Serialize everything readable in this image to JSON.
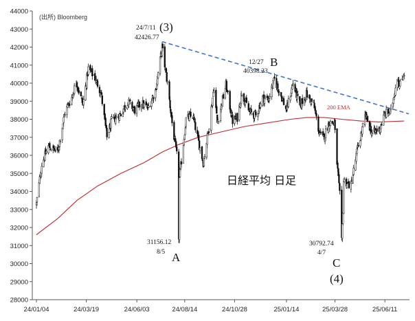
{
  "chart_data": {
    "type": "candlestick",
    "title": "日経平均 日足",
    "source": "(出所) Bloomberg",
    "ylim": [
      28000,
      44000
    ],
    "y_ticks": [
      28000,
      29000,
      30000,
      31000,
      32000,
      33000,
      34000,
      35000,
      36000,
      37000,
      38000,
      39000,
      40000,
      41000,
      42000,
      43000,
      44000
    ],
    "y_tick_labels": [
      "28000",
      "29000",
      "30000",
      "31000",
      "32000",
      "33000",
      "34000",
      "35000",
      "36000",
      "37000",
      "38000",
      "39000",
      "40000",
      "41000",
      "42000",
      "43000",
      "44000"
    ],
    "x_range": [
      "2024-01-04",
      "2025-07-10"
    ],
    "x_ticks": [
      "2024-01-04",
      "2024-03-19",
      "2024-06-03",
      "2024-08-14",
      "2024-10-28",
      "2025-01-14",
      "2025-03-28",
      "2025-06-11"
    ],
    "x_tick_labels": [
      "24/01/04",
      "24/03/19",
      "24/06/03",
      "24/08/14",
      "24/10/28",
      "25/01/14",
      "25/03/28",
      "25/06/11"
    ],
    "grid": false,
    "price_path": [
      [
        "2024-01-04",
        33300
      ],
      [
        "2024-01-12",
        35500
      ],
      [
        "2024-01-22",
        36500
      ],
      [
        "2024-02-05",
        36200
      ],
      [
        "2024-02-16",
        38400
      ],
      [
        "2024-02-26",
        39200
      ],
      [
        "2024-03-04",
        40100
      ],
      [
        "2024-03-14",
        38800
      ],
      [
        "2024-03-22",
        40800
      ],
      [
        "2024-04-01",
        40300
      ],
      [
        "2024-04-10",
        39500
      ],
      [
        "2024-04-19",
        37000
      ],
      [
        "2024-04-26",
        37900
      ],
      [
        "2024-05-10",
        38300
      ],
      [
        "2024-05-20",
        39000
      ],
      [
        "2024-05-31",
        38500
      ],
      [
        "2024-06-10",
        38900
      ],
      [
        "2024-06-20",
        38600
      ],
      [
        "2024-07-01",
        39600
      ],
      [
        "2024-07-11",
        42000
      ],
      [
        "2024-07-19",
        40000
      ],
      [
        "2024-07-26",
        37800
      ],
      [
        "2024-08-02",
        36000
      ],
      [
        "2024-08-05",
        31500
      ],
      [
        "2024-08-06",
        34700
      ],
      [
        "2024-08-16",
        38000
      ],
      [
        "2024-08-26",
        38200
      ],
      [
        "2024-09-06",
        36400
      ],
      [
        "2024-09-11",
        35600
      ],
      [
        "2024-09-20",
        37700
      ],
      [
        "2024-09-27",
        39800
      ],
      [
        "2024-10-02",
        37800
      ],
      [
        "2024-10-15",
        39900
      ],
      [
        "2024-10-25",
        37900
      ],
      [
        "2024-11-01",
        38100
      ],
      [
        "2024-11-08",
        39500
      ],
      [
        "2024-11-19",
        38400
      ],
      [
        "2024-11-29",
        38200
      ],
      [
        "2024-12-09",
        39200
      ],
      [
        "2024-12-18",
        39100
      ],
      [
        "2024-12-27",
        40200
      ],
      [
        "2025-01-06",
        39300
      ],
      [
        "2025-01-14",
        38500
      ],
      [
        "2025-01-24",
        40000
      ],
      [
        "2025-02-03",
        38700
      ],
      [
        "2025-02-13",
        39400
      ],
      [
        "2025-02-24",
        38800
      ],
      [
        "2025-03-04",
        37300
      ],
      [
        "2025-03-10",
        36900
      ],
      [
        "2025-03-19",
        37800
      ],
      [
        "2025-03-27",
        37800
      ],
      [
        "2025-03-31",
        35600
      ],
      [
        "2025-04-04",
        33800
      ],
      [
        "2025-04-07",
        31200
      ],
      [
        "2025-04-09",
        33000
      ],
      [
        "2025-04-10",
        34600
      ],
      [
        "2025-04-21",
        34300
      ],
      [
        "2025-05-01",
        36400
      ],
      [
        "2025-05-13",
        38200
      ],
      [
        "2025-05-23",
        37200
      ],
      [
        "2025-06-03",
        37500
      ],
      [
        "2025-06-11",
        38300
      ],
      [
        "2025-06-20",
        38400
      ],
      [
        "2025-06-30",
        40400
      ],
      [
        "2025-07-03",
        39800
      ],
      [
        "2025-07-10",
        40600
      ]
    ],
    "series": [
      {
        "name": "200 EMA",
        "color": "#c0282d",
        "points": [
          [
            "2024-01-04",
            31600
          ],
          [
            "2024-02-05",
            32500
          ],
          [
            "2024-03-05",
            33500
          ],
          [
            "2024-04-05",
            34300
          ],
          [
            "2024-05-10",
            35000
          ],
          [
            "2024-06-14",
            35600
          ],
          [
            "2024-07-12",
            36200
          ],
          [
            "2024-08-05",
            36600
          ],
          [
            "2024-09-03",
            37000
          ],
          [
            "2024-10-08",
            37300
          ],
          [
            "2024-11-12",
            37600
          ],
          [
            "2024-12-16",
            37800
          ],
          [
            "2025-01-20",
            38000
          ],
          [
            "2025-02-14",
            38100
          ],
          [
            "2025-03-12",
            38100
          ],
          [
            "2025-04-07",
            38000
          ],
          [
            "2025-05-06",
            37900
          ],
          [
            "2025-06-02",
            37850
          ],
          [
            "2025-07-10",
            37900
          ]
        ]
      }
    ],
    "trendline": {
      "color": "#3f74c4",
      "from": [
        "2024-07-11",
        42300
      ],
      "to": [
        "2025-07-17",
        38300
      ]
    },
    "annotations": [
      {
        "id": "peak-3",
        "date_value": "24/7/11",
        "price_value": "42426.77",
        "wave": "(3)",
        "x": "2024-07-11",
        "y": 42427
      },
      {
        "id": "peak-b",
        "date_value": "12/27",
        "price_value": "40398.23",
        "wave": "B",
        "x": "2024-12-27",
        "y": 40398
      },
      {
        "id": "low-a",
        "price_value": "31156.12",
        "date_value": "8/5",
        "wave": "A",
        "x": "2024-08-05",
        "y": 31156
      },
      {
        "id": "low-c",
        "price_value": "30792.74",
        "date_value": "4/7",
        "wave": "C",
        "wave2": "(4)",
        "x": "2025-04-07",
        "y": 30793
      }
    ],
    "ema_label": "200 EMA"
  }
}
